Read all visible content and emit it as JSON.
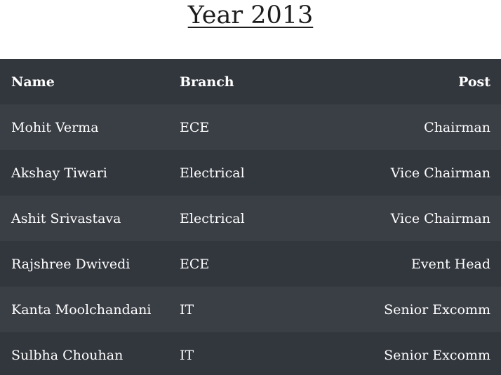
{
  "page": {
    "title": "Year 2013"
  },
  "table": {
    "headers": {
      "name": "Name",
      "branch": "Branch",
      "post": "Post"
    },
    "rows": [
      {
        "name": "Mohit Verma",
        "branch": "ECE",
        "post": "Chairman"
      },
      {
        "name": "Akshay Tiwari",
        "branch": "Electrical",
        "post": "Vice Chairman"
      },
      {
        "name": "Ashit Srivastava",
        "branch": "Electrical",
        "post": "Vice Chairman"
      },
      {
        "name": "Rajshree Dwivedi",
        "branch": "ECE",
        "post": "Event Head"
      },
      {
        "name": "Kanta Moolchandani",
        "branch": "IT",
        "post": "Senior Excomm"
      },
      {
        "name": "Sulbha Chouhan",
        "branch": "IT",
        "post": "Senior Excomm"
      }
    ]
  },
  "colors": {
    "header_background": "#32363d",
    "row_odd_background": "#3a3e45",
    "row_even_background": "#32363d",
    "cell_text": "#ffffff",
    "title_text": "#1d1d1d"
  }
}
